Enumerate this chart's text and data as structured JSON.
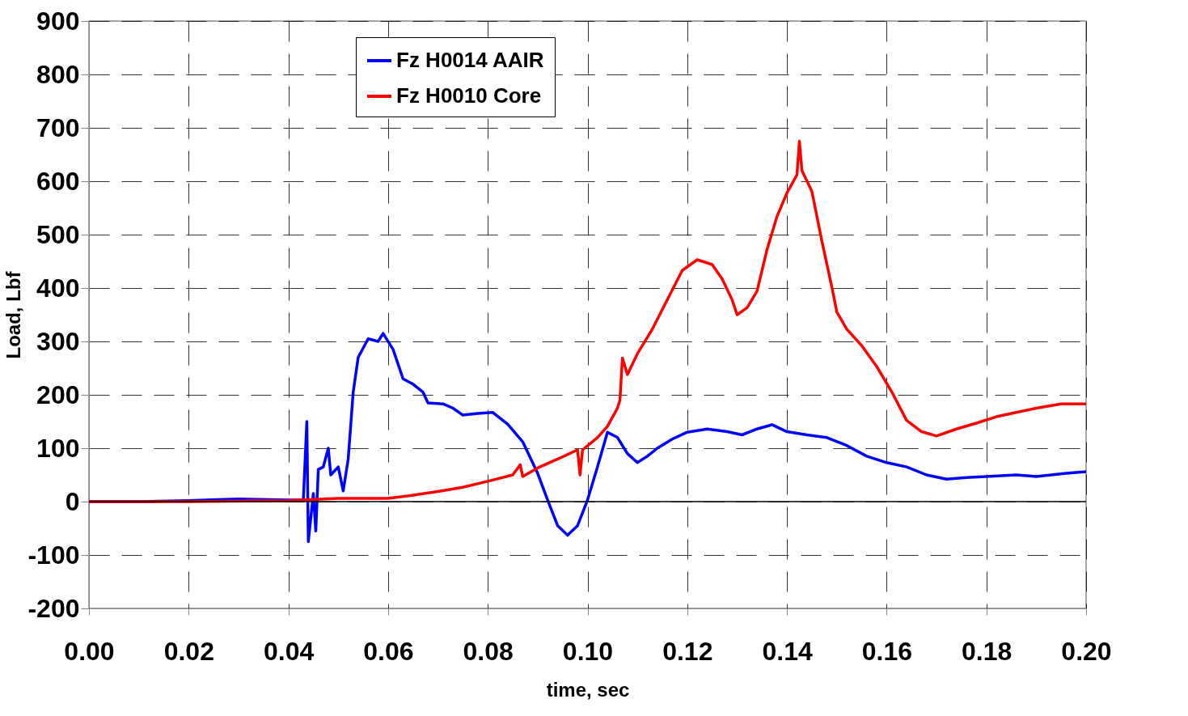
{
  "chart_data": {
    "type": "line",
    "xlabel": "time, sec",
    "ylabel": "Load, Lbf",
    "xlim": [
      0,
      0.2
    ],
    "xticks": [
      {
        "value": 0,
        "label": "0.00"
      },
      {
        "value": 0.02,
        "label": "0.02"
      },
      {
        "value": 0.04,
        "label": "0.04"
      },
      {
        "value": 0.06,
        "label": "0.06"
      },
      {
        "value": 0.08,
        "label": "0.08"
      },
      {
        "value": 0.1,
        "label": "0.10"
      },
      {
        "value": 0.12,
        "label": "0.12"
      },
      {
        "value": 0.14,
        "label": "0.14"
      },
      {
        "value": 0.16,
        "label": "0.16"
      },
      {
        "value": 0.18,
        "label": "0.18"
      },
      {
        "value": 0.2,
        "label": "0.20"
      }
    ],
    "ylim": [
      -200,
      900
    ],
    "yticks": [
      -200,
      -100,
      0,
      100,
      200,
      300,
      400,
      500,
      600,
      700,
      800,
      900
    ],
    "grid": true,
    "legend": "top",
    "line_style": "solid",
    "ref_lines": [
      {
        "axis": "y",
        "value": 0,
        "color": "#000000"
      }
    ],
    "series": [
      {
        "name": "Fz H0014 AAIR",
        "color": "#0000ff",
        "x": [
          0,
          0.01,
          0.02,
          0.03,
          0.04,
          0.043,
          0.0437,
          0.044,
          0.045,
          0.0455,
          0.046,
          0.047,
          0.048,
          0.0485,
          0.05,
          0.051,
          0.052,
          0.053,
          0.054,
          0.056,
          0.058,
          0.059,
          0.061,
          0.063,
          0.065,
          0.067,
          0.068,
          0.071,
          0.073,
          0.075,
          0.078,
          0.081,
          0.084,
          0.087,
          0.09,
          0.092,
          0.094,
          0.096,
          0.098,
          0.1,
          0.102,
          0.104,
          0.106,
          0.108,
          0.11,
          0.112,
          0.114,
          0.117,
          0.12,
          0.124,
          0.128,
          0.131,
          0.134,
          0.137,
          0.14,
          0.144,
          0.148,
          0.152,
          0.156,
          0.16,
          0.164,
          0.168,
          0.172,
          0.176,
          0.18,
          0.186,
          0.19,
          0.196,
          0.2
        ],
        "values": [
          0,
          0,
          2,
          5,
          3,
          3,
          150,
          -75,
          15,
          -55,
          60,
          65,
          100,
          50,
          65,
          20,
          80,
          205,
          270,
          305,
          300,
          315,
          285,
          230,
          220,
          205,
          185,
          183,
          175,
          162,
          165,
          167,
          145,
          112,
          53,
          3,
          -45,
          -63,
          -45,
          3,
          65,
          130,
          120,
          90,
          73,
          85,
          100,
          117,
          130,
          136,
          131,
          125,
          136,
          144,
          131,
          125,
          120,
          105,
          85,
          73,
          65,
          50,
          42,
          45,
          47,
          50,
          47,
          53,
          56
        ]
      },
      {
        "name": "Fz H0010 Core",
        "color": "#ff0000",
        "x": [
          0,
          0.02,
          0.04,
          0.05,
          0.06,
          0.065,
          0.07,
          0.075,
          0.08,
          0.085,
          0.0865,
          0.087,
          0.09,
          0.095,
          0.098,
          0.0985,
          0.099,
          0.102,
          0.104,
          0.106,
          0.1065,
          0.107,
          0.108,
          0.11,
          0.113,
          0.116,
          0.119,
          0.122,
          0.125,
          0.127,
          0.129,
          0.13,
          0.132,
          0.134,
          0.136,
          0.138,
          0.14,
          0.142,
          0.1425,
          0.143,
          0.145,
          0.147,
          0.149,
          0.15,
          0.152,
          0.155,
          0.158,
          0.161,
          0.164,
          0.167,
          0.17,
          0.174,
          0.178,
          0.182,
          0.186,
          0.19,
          0.195,
          0.2
        ],
        "values": [
          0,
          0,
          2,
          6,
          6,
          12,
          19,
          27,
          38,
          50,
          69,
          47,
          63,
          84,
          97,
          50,
          97,
          120,
          141,
          175,
          190,
          269,
          238,
          277,
          323,
          378,
          433,
          453,
          444,
          417,
          378,
          350,
          363,
          394,
          472,
          534,
          578,
          612,
          675,
          620,
          581,
          488,
          402,
          355,
          323,
          292,
          253,
          206,
          152,
          131,
          123,
          136,
          147,
          159,
          167,
          175,
          183,
          183
        ]
      }
    ]
  }
}
